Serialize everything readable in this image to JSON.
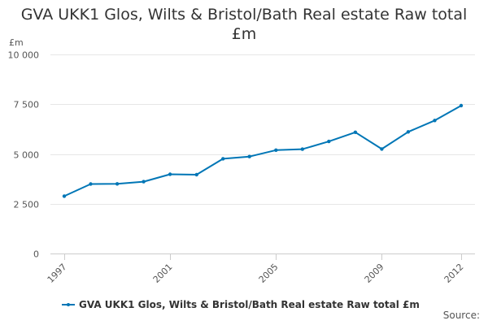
{
  "chart_data": {
    "type": "line",
    "title": "GVA UKK1 Glos, Wilts & Bristol/Bath Real estate Raw total £m",
    "ylabel": "£m",
    "xlabel": "",
    "x": [
      1997,
      1998,
      1999,
      2000,
      2001,
      2002,
      2003,
      2004,
      2005,
      2006,
      2007,
      2008,
      2009,
      2010,
      2011,
      2012
    ],
    "x_tick_labels": [
      "1997",
      "2001",
      "2005",
      "2009",
      "2012"
    ],
    "y_tick_labels": [
      "0",
      "2 500",
      "5 000",
      "7 500",
      "10 000"
    ],
    "ylim": [
      0,
      10000
    ],
    "grid": true,
    "legend_position": "bottom",
    "series": [
      {
        "name": "GVA UKK1 Glos, Wilts & Bristol/Bath Real estate Raw total £m",
        "color": "#0076b6",
        "values": [
          2880,
          3490,
          3500,
          3610,
          3980,
          3960,
          4760,
          4870,
          5190,
          5240,
          5630,
          6090,
          5250,
          6110,
          6680,
          7430
        ]
      }
    ]
  },
  "title_lines": [
    "GVA UKK1 Glos, Wilts & Bristol/Bath Real estate Raw total",
    "£m"
  ],
  "credits": "Source:"
}
